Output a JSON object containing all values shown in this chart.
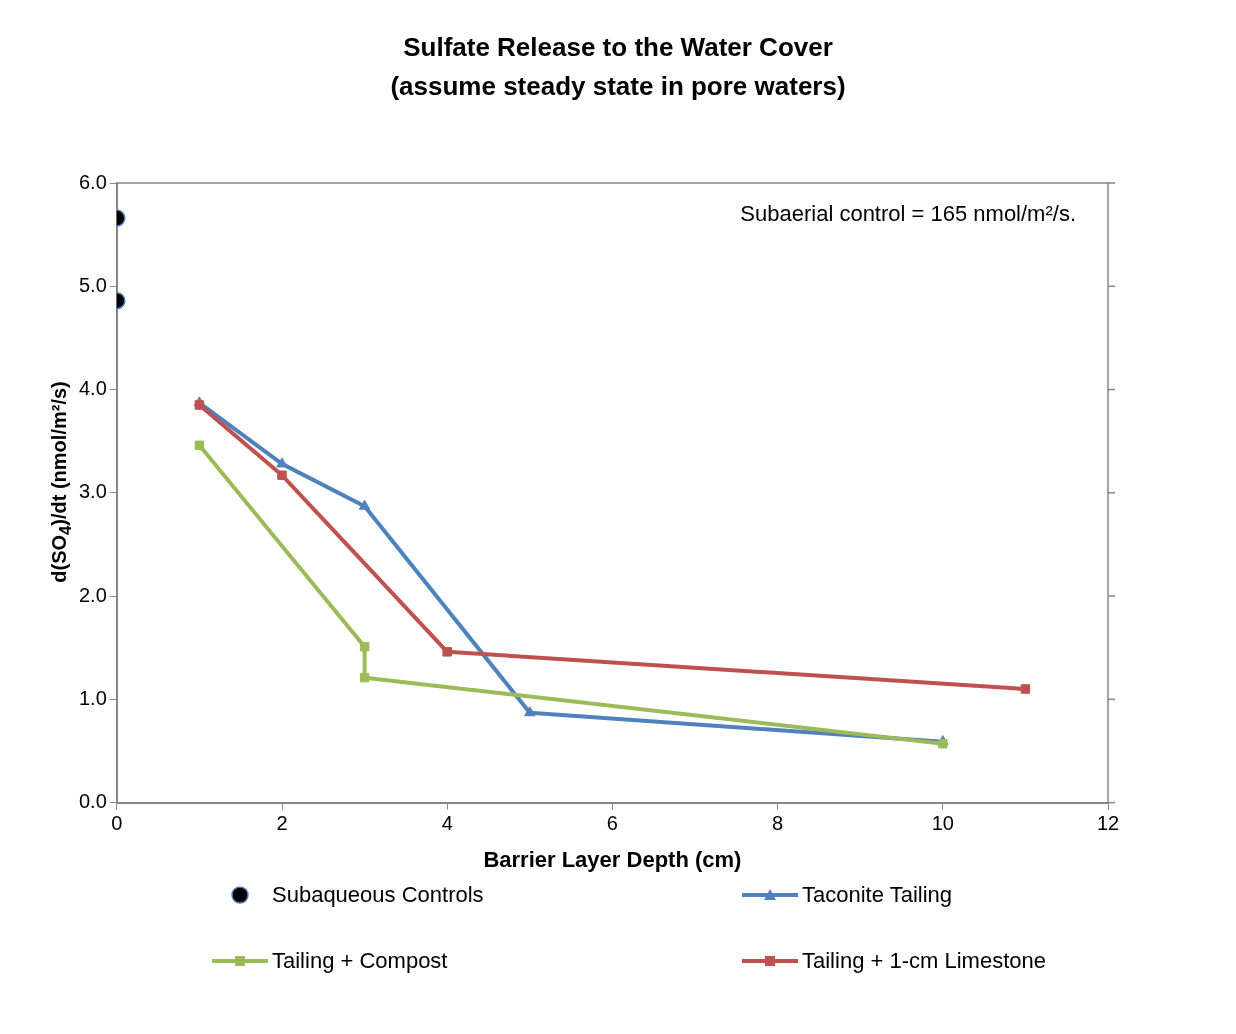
{
  "chart_data": {
    "type": "line",
    "title": "Sulfate Release to the Water Cover",
    "subtitle": "(assume steady state in pore waters)",
    "xlabel": "Barrier Layer Depth (cm)",
    "ylabel": "d(SO$_{4}$)/dt (nmol/m²/s)",
    "xlim": [
      0,
      12
    ],
    "xticks": [
      0,
      2,
      4,
      6,
      8,
      10,
      12
    ],
    "ylim": [
      0,
      6
    ],
    "yticks": [
      {
        "value": 0,
        "label": "0.0"
      },
      {
        "value": 1,
        "label": "1.0"
      },
      {
        "value": 2,
        "label": "2.0"
      },
      {
        "value": 3,
        "label": "3.0"
      },
      {
        "value": 4,
        "label": "4.0"
      },
      {
        "value": 5,
        "label": "5.0"
      },
      {
        "value": 6,
        "label": "6.0"
      }
    ],
    "grid": false,
    "legend": "bottom",
    "line_style": "solid",
    "annotations": [
      "Subaerial control = 165 nmol/m²/s."
    ],
    "series": [
      {
        "name": "Subaqueous Controls",
        "type": "scatter",
        "marker": "circle",
        "color": "#000000",
        "x": [
          0,
          0
        ],
        "values": [
          5.66,
          4.86
        ]
      },
      {
        "name": "Taconite Tailing",
        "marker": "triangle",
        "color": "#4f81bd",
        "x": [
          1,
          2,
          3,
          5,
          10
        ],
        "values": [
          3.87,
          3.28,
          2.87,
          0.87,
          0.59
        ]
      },
      {
        "name": "Tailing + Compost",
        "marker": "square",
        "color": "#9bbb59",
        "x": [
          1,
          3,
          3,
          10
        ],
        "values": [
          3.46,
          1.51,
          1.21,
          0.57
        ]
      },
      {
        "name": "Tailing + 1-cm Limestone",
        "marker": "square",
        "color": "#c0504d",
        "x": [
          1,
          2,
          4,
          11
        ],
        "values": [
          3.85,
          3.17,
          1.46,
          1.1
        ]
      }
    ]
  }
}
